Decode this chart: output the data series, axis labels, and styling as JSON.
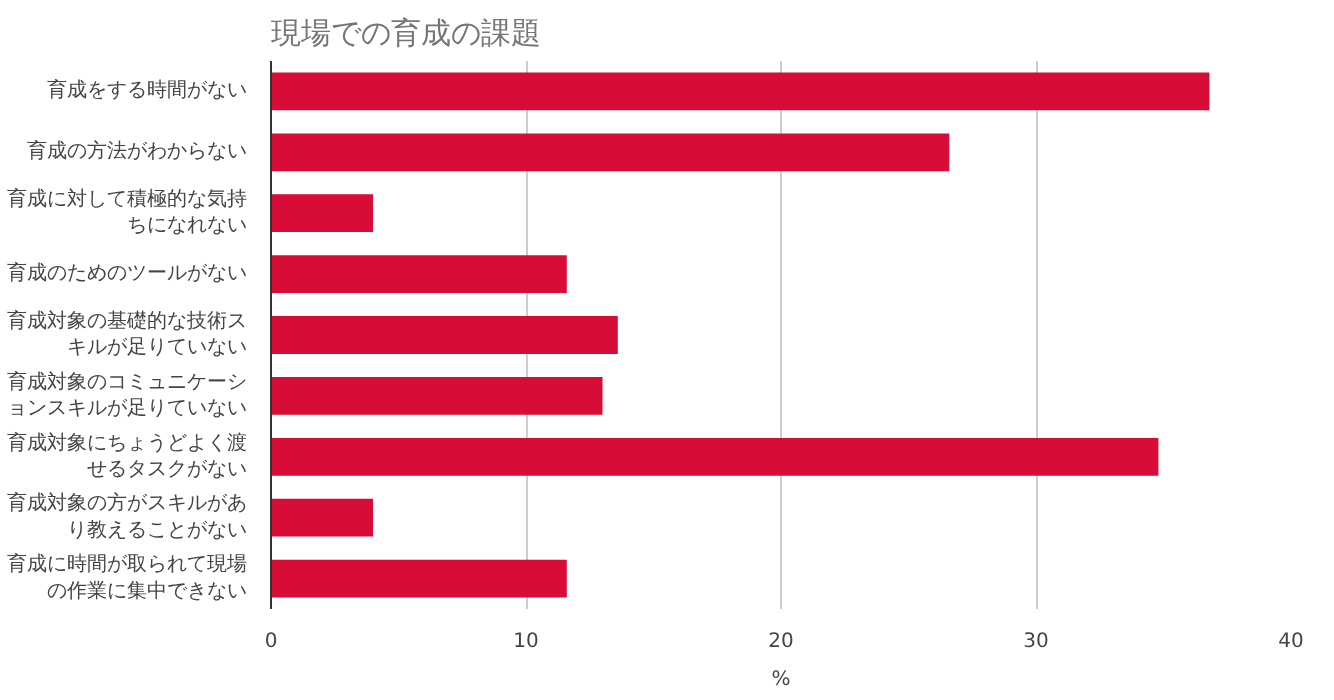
{
  "chart_data": {
    "type": "bar",
    "orientation": "horizontal",
    "title": "現場での育成の課題",
    "xlabel": "%",
    "categories": [
      "育成をする時間がない",
      "育成の方法がわからない",
      "育成に対して積極的な気持ちになれない",
      "育成のためのツールがない",
      "育成対象の基礎的な技術スキルが足りていない",
      "育成対象のコミュニケーションスキルが足りていない",
      "育成対象にちょうどよく渡せるタスクがない",
      "育成対象の方がスキルがあり教えることがない",
      "育成に時間が取られて現場の作業に集中できない"
    ],
    "values": [
      36.8,
      26.6,
      4.0,
      11.6,
      13.6,
      13.0,
      34.8,
      4.0,
      11.6
    ],
    "color": "#d80d37",
    "xlim": [
      0,
      40
    ],
    "xticks": [
      0,
      10,
      20,
      30,
      40
    ],
    "grid": "x"
  }
}
